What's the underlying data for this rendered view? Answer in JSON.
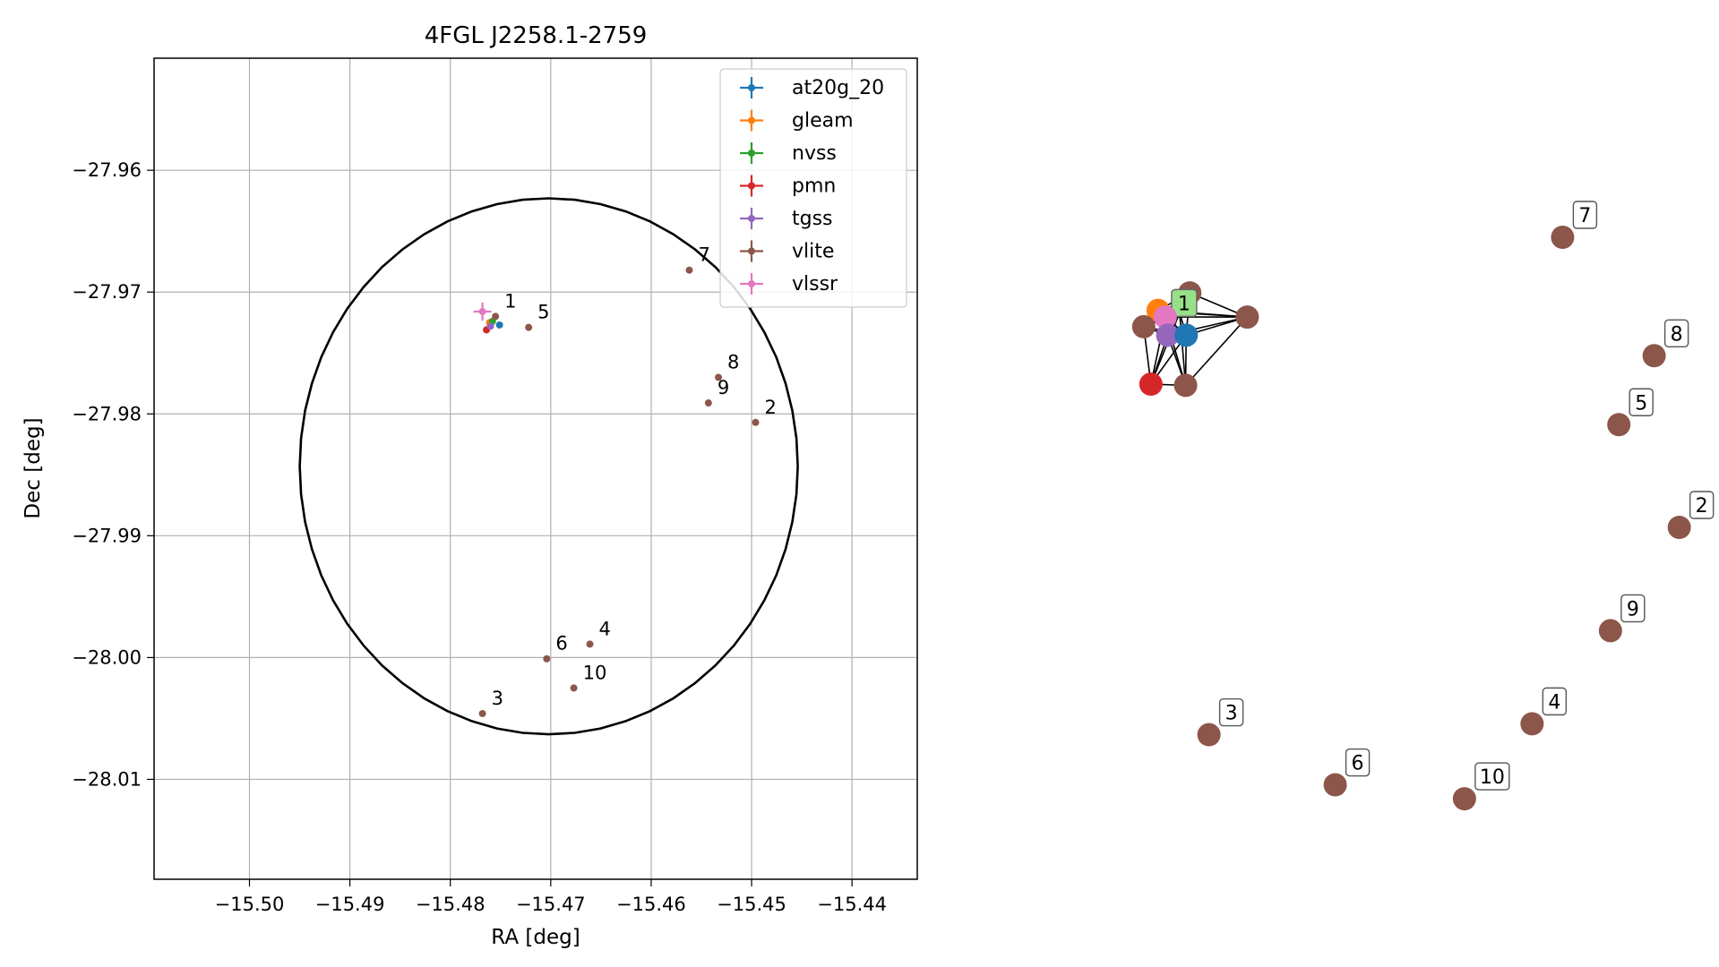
{
  "chart_data": [
    {
      "type": "scatter",
      "title": "4FGL J2258.1-2759",
      "xlabel": "RA [deg]",
      "ylabel": "Dec [deg]",
      "xlim": [
        -15.5095,
        -15.4335
      ],
      "ylim": [
        -28.0182,
        -27.9508
      ],
      "xticks": [
        -15.5,
        -15.49,
        -15.48,
        -15.47,
        -15.46,
        -15.45,
        -15.44
      ],
      "xtick_labels": [
        "−15.50",
        "−15.49",
        "−15.48",
        "−15.47",
        "−15.46",
        "−15.45",
        "−15.44"
      ],
      "yticks": [
        -27.96,
        -27.97,
        -27.98,
        -27.99,
        -28.0,
        -28.01
      ],
      "ytick_labels": [
        "−27.96",
        "−27.97",
        "−27.98",
        "−27.99",
        "−28.00",
        "−28.01"
      ],
      "grid": true,
      "legend_position": "top-right",
      "circle": {
        "center": [
          -15.4702,
          -27.9843
        ],
        "radius_x": 0.0248,
        "radius_y": 0.022,
        "color": "#000000"
      },
      "series": [
        {
          "name": "at20g_20",
          "color": "#1f77b4",
          "points": [
            {
              "x": -15.4751,
              "y": -27.9727
            }
          ]
        },
        {
          "name": "gleam",
          "color": "#ff7f0e",
          "points": [
            {
              "x": -15.4761,
              "y": -27.9725
            }
          ]
        },
        {
          "name": "nvss",
          "color": "#2ca02c",
          "points": [
            {
              "x": -15.4758,
              "y": -27.9724
            }
          ]
        },
        {
          "name": "pmn",
          "color": "#d62728",
          "points": [
            {
              "x": -15.4764,
              "y": -27.9731
            }
          ]
        },
        {
          "name": "tgss",
          "color": "#9467bd",
          "points": [
            {
              "x": -15.476,
              "y": -27.9728
            }
          ]
        },
        {
          "name": "vlite",
          "color": "#8c564b",
          "points": [
            {
              "x": -15.4755,
              "y": -27.972,
              "label": "1"
            },
            {
              "x": -15.4496,
              "y": -27.9807,
              "label": "2"
            },
            {
              "x": -15.4768,
              "y": -28.0046,
              "label": "3"
            },
            {
              "x": -15.4661,
              "y": -27.9989,
              "label": "4"
            },
            {
              "x": -15.4722,
              "y": -27.9729,
              "label": "5"
            },
            {
              "x": -15.4704,
              "y": -28.0001,
              "label": "6"
            },
            {
              "x": -15.4562,
              "y": -27.9682,
              "label": "7"
            },
            {
              "x": -15.4533,
              "y": -27.977,
              "label": "8"
            },
            {
              "x": -15.4543,
              "y": -27.9791,
              "label": "9"
            },
            {
              "x": -15.4677,
              "y": -28.0025,
              "label": "10"
            }
          ]
        },
        {
          "name": "vlssr",
          "color": "#e377c2",
          "points": [
            {
              "x": -15.4768,
              "y": -27.9716
            }
          ]
        }
      ]
    },
    {
      "type": "network",
      "nodes": [
        {
          "id": "g0",
          "x": 0.124,
          "y": 0.879,
          "color": "#ff7f0e",
          "label": ""
        },
        {
          "id": "v1",
          "x": 0.177,
          "y": 0.908,
          "color": "#8c564b",
          "label": ""
        },
        {
          "id": "v1b",
          "x": 0.273,
          "y": 0.868,
          "color": "#8c564b",
          "label": ""
        },
        {
          "id": "v1c",
          "x": 0.1,
          "y": 0.852,
          "color": "#8c564b",
          "label": ""
        },
        {
          "id": "ve",
          "x": 0.17,
          "y": 0.755,
          "color": "#8c564b",
          "label": ""
        },
        {
          "id": "lbl1",
          "x": 0.16,
          "y": 0.875,
          "color": "#98df8a",
          "label": "1",
          "labeled": true
        },
        {
          "id": "vl",
          "x": 0.136,
          "y": 0.868,
          "color": "#e377c2",
          "label": ""
        },
        {
          "id": "tg",
          "x": 0.14,
          "y": 0.838,
          "color": "#9467bd",
          "label": ""
        },
        {
          "id": "at",
          "x": 0.171,
          "y": 0.838,
          "color": "#1f77b4",
          "label": ""
        },
        {
          "id": "pm",
          "x": 0.112,
          "y": 0.757,
          "color": "#d62728",
          "label": ""
        },
        {
          "id": "n7",
          "x": 0.8,
          "y": 1.0,
          "color": "#8c564b",
          "label": "7",
          "labeled": true
        },
        {
          "id": "n8",
          "x": 0.953,
          "y": 0.804,
          "color": "#8c564b",
          "label": "8",
          "labeled": true
        },
        {
          "id": "n5",
          "x": 0.894,
          "y": 0.69,
          "color": "#8c564b",
          "label": "5",
          "labeled": true
        },
        {
          "id": "n2",
          "x": 0.995,
          "y": 0.52,
          "color": "#8c564b",
          "label": "2",
          "labeled": true
        },
        {
          "id": "n9",
          "x": 0.88,
          "y": 0.349,
          "color": "#8c564b",
          "label": "9",
          "labeled": true
        },
        {
          "id": "n4",
          "x": 0.749,
          "y": 0.195,
          "color": "#8c564b",
          "label": "4",
          "labeled": true
        },
        {
          "id": "n3",
          "x": 0.209,
          "y": 0.177,
          "color": "#8c564b",
          "label": "3",
          "labeled": true
        },
        {
          "id": "n6",
          "x": 0.42,
          "y": 0.094,
          "color": "#8c564b",
          "label": "6",
          "labeled": true
        },
        {
          "id": "n10",
          "x": 0.636,
          "y": 0.071,
          "color": "#8c564b",
          "label": "10",
          "labeled": true
        }
      ],
      "edges": [
        [
          "g0",
          "v1"
        ],
        [
          "g0",
          "v1c"
        ],
        [
          "g0",
          "vl"
        ],
        [
          "g0",
          "tg"
        ],
        [
          "g0",
          "at"
        ],
        [
          "g0",
          "lbl1"
        ],
        [
          "g0",
          "v1b"
        ],
        [
          "v1",
          "v1b"
        ],
        [
          "v1",
          "vl"
        ],
        [
          "v1",
          "at"
        ],
        [
          "v1",
          "lbl1"
        ],
        [
          "v1",
          "tg"
        ],
        [
          "v1",
          "v1c"
        ],
        [
          "v1b",
          "at"
        ],
        [
          "v1b",
          "lbl1"
        ],
        [
          "v1b",
          "vl"
        ],
        [
          "v1b",
          "ve"
        ],
        [
          "v1b",
          "tg"
        ],
        [
          "v1c",
          "vl"
        ],
        [
          "v1c",
          "tg"
        ],
        [
          "v1c",
          "pm"
        ],
        [
          "v1c",
          "at"
        ],
        [
          "v1c",
          "lbl1"
        ],
        [
          "ve",
          "at"
        ],
        [
          "ve",
          "tg"
        ],
        [
          "ve",
          "pm"
        ],
        [
          "ve",
          "vl"
        ],
        [
          "ve",
          "lbl1"
        ],
        [
          "pm",
          "tg"
        ],
        [
          "pm",
          "vl"
        ],
        [
          "pm",
          "at"
        ],
        [
          "pm",
          "lbl1"
        ],
        [
          "vl",
          "tg"
        ],
        [
          "vl",
          "at"
        ],
        [
          "vl",
          "lbl1"
        ],
        [
          "tg",
          "at"
        ],
        [
          "tg",
          "lbl1"
        ],
        [
          "at",
          "lbl1"
        ]
      ]
    }
  ]
}
